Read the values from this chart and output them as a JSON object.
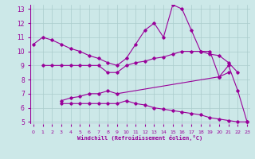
{
  "xlabel": "Windchill (Refroidissement éolien,°C)",
  "background_color": "#cce8e8",
  "grid_color": "#aacccc",
  "line_color": "#990099",
  "xmin": 0,
  "xmax": 23,
  "ymin": 5,
  "ymax": 13,
  "yticks": [
    5,
    6,
    7,
    8,
    9,
    10,
    11,
    12,
    13
  ],
  "xticks": [
    0,
    1,
    2,
    3,
    4,
    5,
    6,
    7,
    8,
    9,
    10,
    11,
    12,
    13,
    14,
    15,
    16,
    17,
    18,
    19,
    20,
    21,
    22,
    23
  ],
  "lines": [
    {
      "x": [
        0,
        1,
        2,
        3,
        4,
        5,
        6,
        7,
        8,
        9,
        10,
        11,
        12,
        13,
        14,
        15,
        16,
        17,
        18,
        19,
        20,
        21,
        22,
        23
      ],
      "y": [
        10.5,
        11.0,
        10.8,
        10.5,
        10.2,
        10.0,
        9.7,
        9.5,
        9.2,
        9.0,
        9.5,
        10.5,
        11.5,
        12.0,
        11.0,
        13.3,
        13.0,
        11.5,
        10.0,
        9.8,
        9.7,
        9.2,
        8.5,
        null
      ]
    },
    {
      "x": [
        1,
        2,
        3,
        4,
        5,
        6,
        7,
        8,
        9,
        10,
        11,
        12,
        13,
        14,
        15,
        16,
        17,
        18,
        19,
        20,
        21,
        22,
        23
      ],
      "y": [
        9.0,
        9.0,
        9.0,
        9.0,
        9.0,
        9.0,
        9.0,
        8.5,
        8.5,
        9.0,
        9.2,
        9.3,
        9.5,
        9.6,
        9.8,
        10.0,
        10.0,
        10.0,
        10.0,
        8.2,
        8.5,
        null,
        null
      ]
    },
    {
      "x": [
        3,
        4,
        5,
        6,
        7,
        8,
        9,
        20,
        21,
        22,
        23
      ],
      "y": [
        6.5,
        6.7,
        6.8,
        7.0,
        7.0,
        7.2,
        7.0,
        8.2,
        9.0,
        7.2,
        5.0
      ]
    },
    {
      "x": [
        3,
        4,
        5,
        6,
        7,
        8,
        9,
        10,
        11,
        12,
        13,
        14,
        15,
        16,
        17,
        18,
        19,
        20,
        21,
        22,
        23
      ],
      "y": [
        6.3,
        6.3,
        6.3,
        6.3,
        6.3,
        6.3,
        6.3,
        6.5,
        6.3,
        6.2,
        6.0,
        5.9,
        5.8,
        5.7,
        5.6,
        5.5,
        5.3,
        5.2,
        5.1,
        5.0,
        5.0
      ]
    }
  ]
}
